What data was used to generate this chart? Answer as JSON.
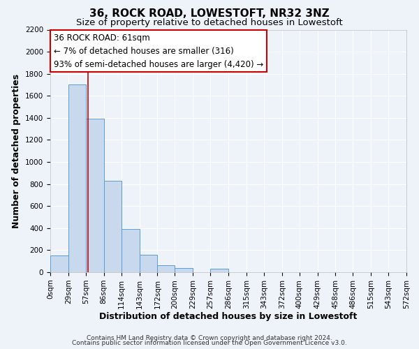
{
  "title": "36, ROCK ROAD, LOWESTOFT, NR32 3NZ",
  "subtitle": "Size of property relative to detached houses in Lowestoft",
  "xlabel": "Distribution of detached houses by size in Lowestoft",
  "ylabel": "Number of detached properties",
  "bin_edges": [
    0,
    29,
    57,
    86,
    114,
    143,
    172,
    200,
    229,
    257,
    286,
    315,
    343,
    372,
    400,
    429,
    458,
    486,
    515,
    543,
    572
  ],
  "bin_labels": [
    "0sqm",
    "29sqm",
    "57sqm",
    "86sqm",
    "114sqm",
    "143sqm",
    "172sqm",
    "200sqm",
    "229sqm",
    "257sqm",
    "286sqm",
    "315sqm",
    "343sqm",
    "372sqm",
    "400sqm",
    "429sqm",
    "458sqm",
    "486sqm",
    "515sqm",
    "543sqm",
    "572sqm"
  ],
  "bar_heights": [
    150,
    1700,
    1390,
    830,
    390,
    160,
    65,
    35,
    0,
    30,
    0,
    0,
    0,
    0,
    0,
    0,
    0,
    0,
    0,
    0
  ],
  "bar_color": "#c8d9ee",
  "bar_edge_color": "#5b9bd5",
  "ylim": [
    0,
    2200
  ],
  "yticks": [
    0,
    200,
    400,
    600,
    800,
    1000,
    1200,
    1400,
    1600,
    1800,
    2000,
    2200
  ],
  "property_line_x": 61,
  "property_line_color": "#cc0000",
  "annotation_line1": "36 ROCK ROAD: 61sqm",
  "annotation_line2": "← 7% of detached houses are smaller (316)",
  "annotation_line3": "93% of semi-detached houses are larger (4,420) →",
  "footer_line1": "Contains HM Land Registry data © Crown copyright and database right 2024.",
  "footer_line2": "Contains public sector information licensed under the Open Government Licence v3.0.",
  "bg_color": "#eef2f9",
  "grid_color": "#ffffff",
  "title_fontsize": 11,
  "subtitle_fontsize": 9.5,
  "axis_label_fontsize": 9,
  "tick_fontsize": 7.5,
  "annotation_fontsize": 8.5,
  "footer_fontsize": 6.5
}
